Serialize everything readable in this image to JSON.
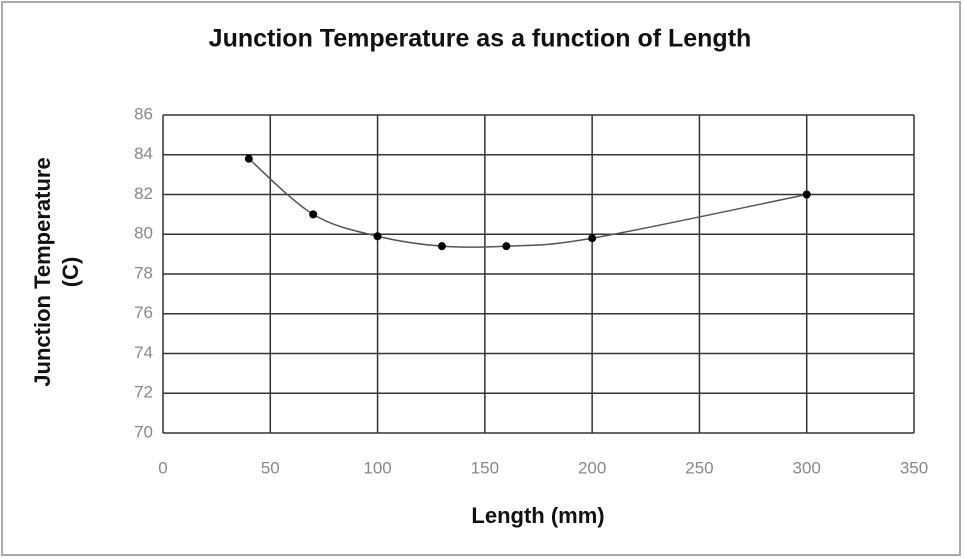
{
  "chart_data": {
    "type": "scatter",
    "title": "Junction Temperature as a function of Length",
    "xlabel": "Length (mm)",
    "ylabel": [
      "Junction Temperature",
      "(C)"
    ],
    "x": [
      40,
      70,
      100,
      130,
      160,
      200,
      300
    ],
    "values": [
      83.8,
      81,
      79.9,
      79.4,
      79.4,
      79.8,
      82
    ],
    "color": "#000000",
    "line_color": "#555555",
    "smooth": true,
    "xlim": [
      0,
      350
    ],
    "xticks": [
      0,
      50,
      100,
      150,
      200,
      250,
      300,
      350
    ],
    "ylim": [
      70,
      86
    ],
    "yticks": [
      70,
      72,
      74,
      76,
      78,
      80,
      82,
      84,
      86
    ],
    "grid": true
  }
}
